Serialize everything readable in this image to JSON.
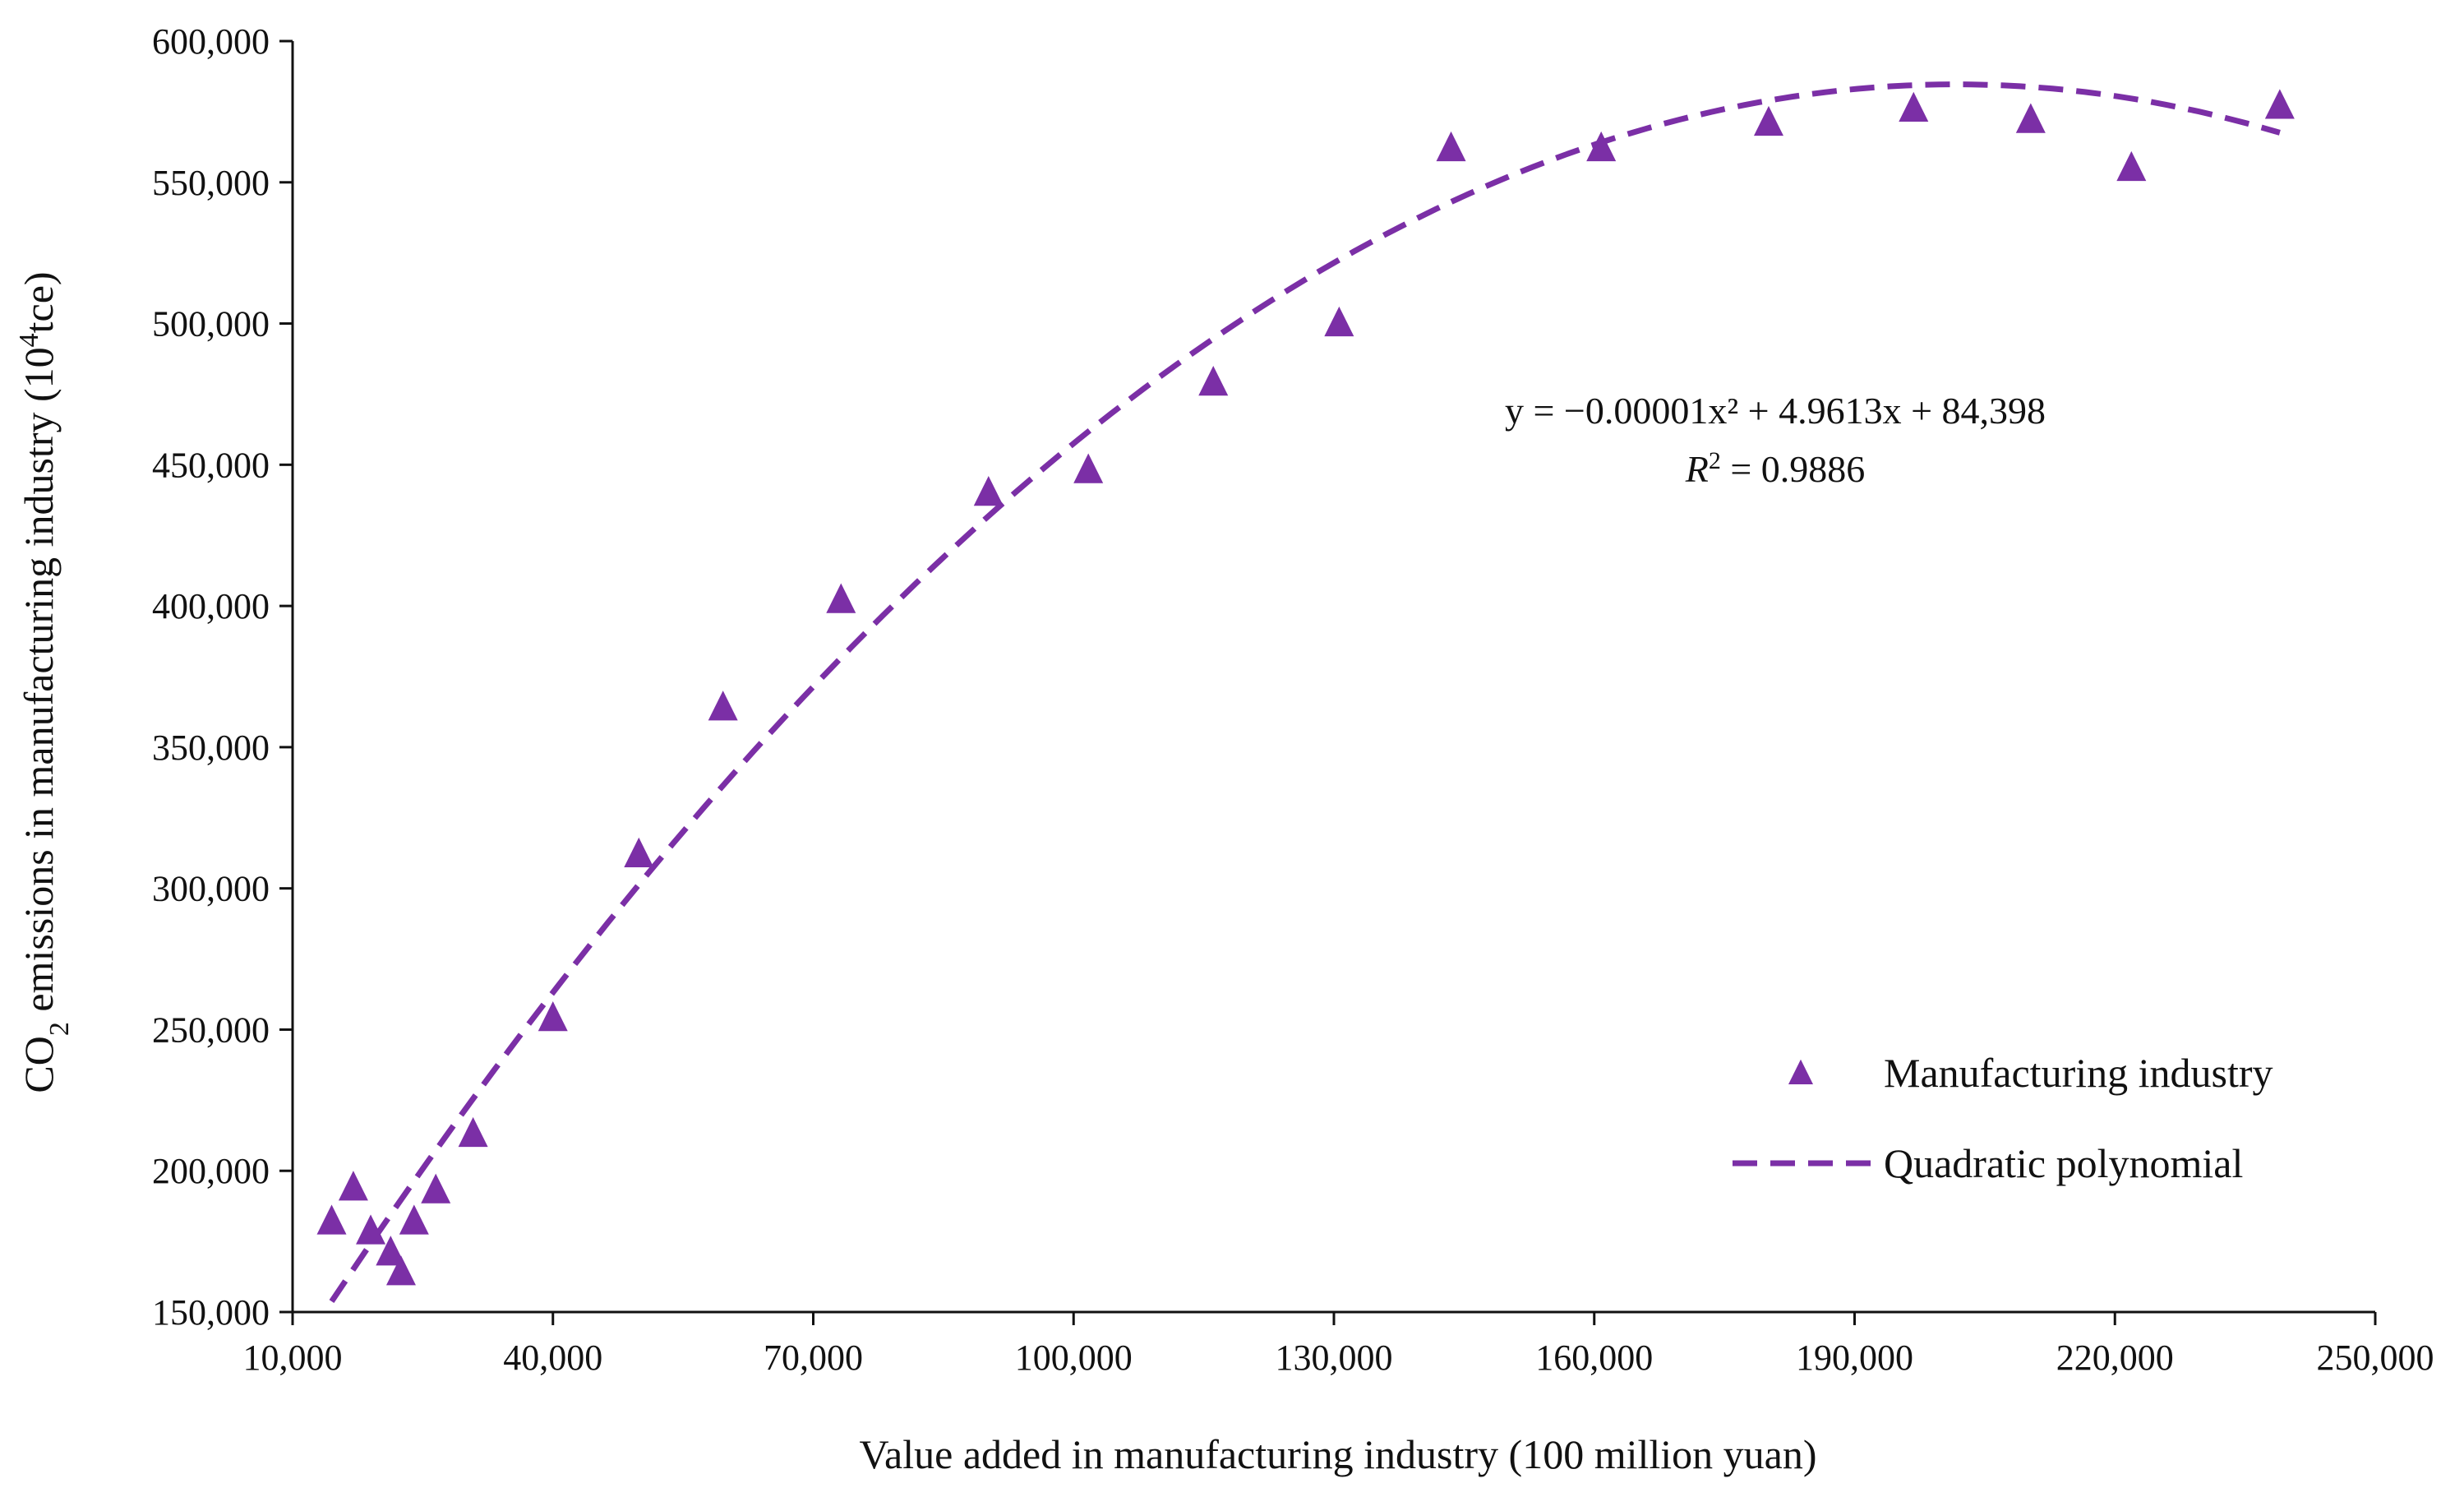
{
  "chart_data": {
    "type": "scatter",
    "title": "",
    "xlabel": "Value added in manufacturing industry (100 million yuan)",
    "ylabel_parts": {
      "pre": "CO",
      "sub": "2",
      "mid": " emissions in manufacturing industry (10",
      "sup": "4",
      "post": "tce)"
    },
    "xlim": [
      10000,
      250000
    ],
    "ylim": [
      150000,
      600000
    ],
    "x_ticks": [
      10000,
      40000,
      70000,
      100000,
      130000,
      160000,
      190000,
      220000,
      250000
    ],
    "x_tick_labels": [
      "10,000",
      "40,000",
      "70,000",
      "100,000",
      "130,000",
      "160,000",
      "190,000",
      "220,000",
      "250,000"
    ],
    "y_ticks": [
      150000,
      200000,
      250000,
      300000,
      350000,
      400000,
      450000,
      500000,
      550000,
      600000
    ],
    "y_tick_labels": [
      "150,000",
      "200,000",
      "250,000",
      "300,000",
      "350,000",
      "400,000",
      "450,000",
      "500,000",
      "550,000",
      "600,000"
    ],
    "grid": false,
    "series": [
      {
        "name": "Manufacturing industry",
        "kind": "scatter",
        "marker": "triangle",
        "color": "#7B2FA6",
        "points": [
          [
            14500,
            182000
          ],
          [
            17000,
            194000
          ],
          [
            19000,
            178500
          ],
          [
            21300,
            171000
          ],
          [
            22500,
            164000
          ],
          [
            24000,
            182000
          ],
          [
            26500,
            193000
          ],
          [
            30800,
            213000
          ],
          [
            40000,
            254000
          ],
          [
            49900,
            312000
          ],
          [
            59600,
            364000
          ],
          [
            73200,
            402000
          ],
          [
            90200,
            440000
          ],
          [
            101700,
            448000
          ],
          [
            116100,
            479000
          ],
          [
            130600,
            500000
          ],
          [
            143500,
            562000
          ],
          [
            160800,
            562000
          ],
          [
            180100,
            571000
          ],
          [
            196800,
            576000
          ],
          [
            210300,
            572000
          ],
          [
            221900,
            555000
          ],
          [
            239000,
            577000
          ]
        ]
      },
      {
        "name": "Quadratic polynomial",
        "kind": "line",
        "style": "dashed",
        "color": "#7B2FA6",
        "coefficients": {
          "a": -1.23e-05,
          "b": 4.9613,
          "c": 84398
        },
        "x_range": [
          14500,
          239000
        ]
      }
    ],
    "annotation": {
      "equation": "y = −0.00001x² + 4.9613x + 84,398",
      "r2_label": "R",
      "r2_sup": "2",
      "r2_value": " = 0.9886"
    },
    "legend": {
      "position": "bottom-right",
      "entries": [
        "Manufacturing industry",
        "Quadratic polynomial"
      ]
    }
  }
}
